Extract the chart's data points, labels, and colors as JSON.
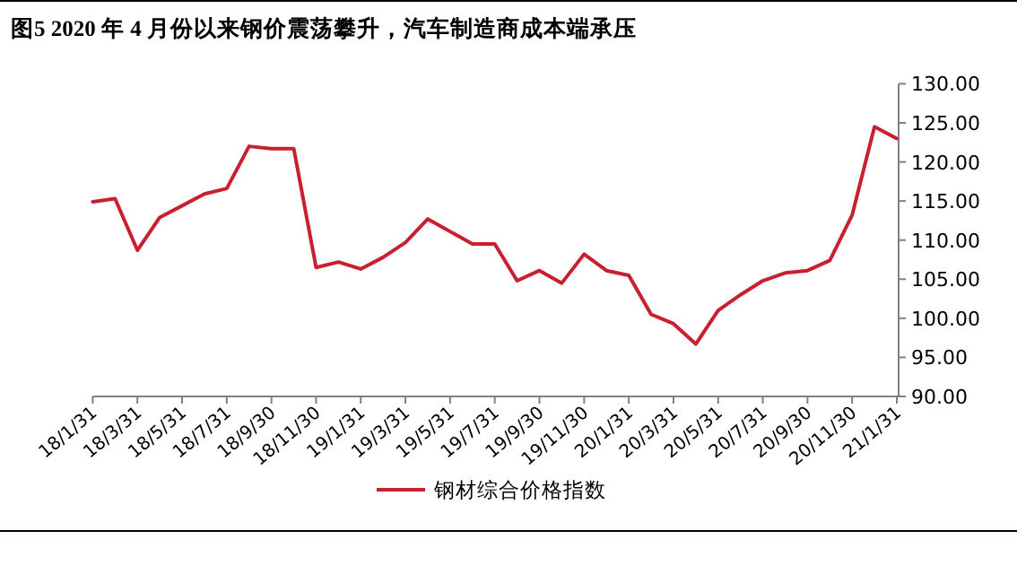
{
  "chart_data": {
    "type": "line",
    "title": "图5   2020 年 4 月份以来钢价震荡攀升，汽车制造商成本端承压",
    "categories": [
      "18/1/31",
      null,
      "18/3/31",
      null,
      "18/5/31",
      null,
      "18/7/31",
      null,
      "18/9/30",
      null,
      "18/11/30",
      null,
      "19/1/31",
      null,
      "19/3/31",
      null,
      "19/5/31",
      null,
      "19/7/31",
      null,
      "19/9/30",
      null,
      "19/11/30",
      null,
      "20/1/31",
      null,
      "20/3/31",
      null,
      "20/5/31",
      null,
      "20/7/31",
      null,
      "20/9/30",
      null,
      "20/11/30",
      null,
      "21/1/31"
    ],
    "series": [
      {
        "name": "钢材综合价格指数",
        "color": "#c8202f",
        "values": [
          114.9,
          115.3,
          108.7,
          112.9,
          114.4,
          115.9,
          116.6,
          122.0,
          121.7,
          121.7,
          106.5,
          107.2,
          106.3,
          107.8,
          109.7,
          112.7,
          111.1,
          109.5,
          109.5,
          104.8,
          106.1,
          104.5,
          108.2,
          106.1,
          105.5,
          100.5,
          99.3,
          96.7,
          101.0,
          103.0,
          104.8,
          105.8,
          106.1,
          107.4,
          113.2,
          124.5,
          123.0
        ]
      }
    ],
    "ylim": [
      90,
      130
    ],
    "yticks": [
      {
        "value": 90,
        "label": "90.00"
      },
      {
        "value": 95,
        "label": "95.00"
      },
      {
        "value": 100,
        "label": "100.00"
      },
      {
        "value": 105,
        "label": "105.00"
      },
      {
        "value": 110,
        "label": "110.00"
      },
      {
        "value": 115,
        "label": "115.00"
      },
      {
        "value": 120,
        "label": "120.00"
      },
      {
        "value": 125,
        "label": "125.00"
      },
      {
        "value": 130,
        "label": "130.00"
      }
    ],
    "legend": "bottom"
  }
}
